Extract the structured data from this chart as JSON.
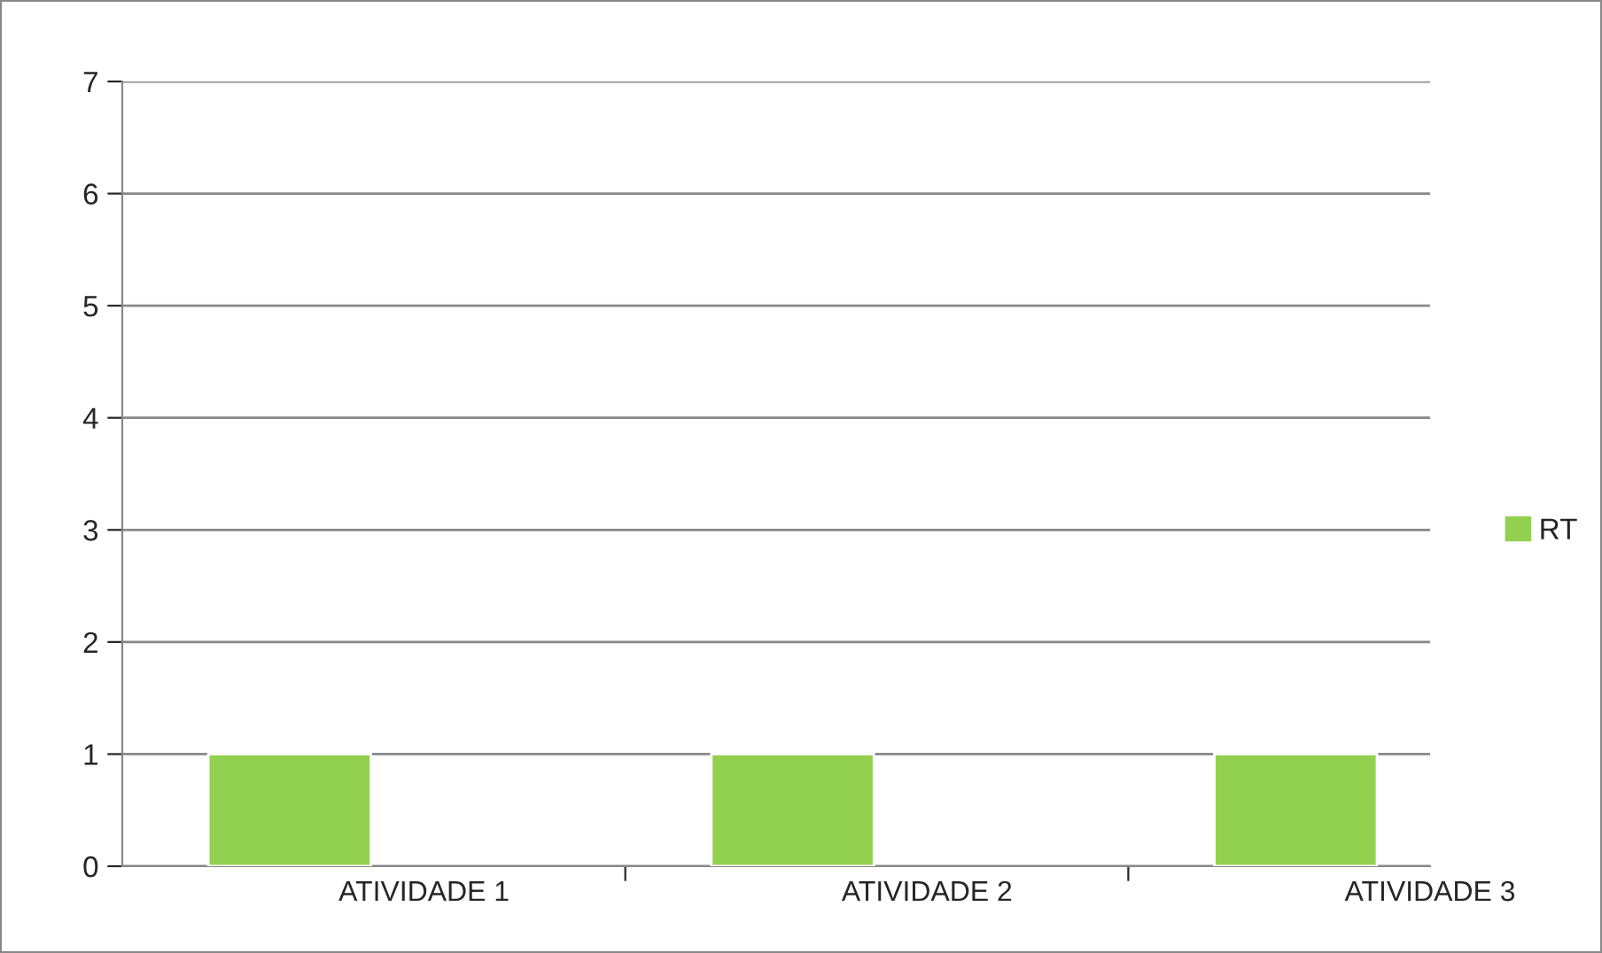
{
  "chart_data": {
    "type": "bar",
    "categories": [
      "ATIVIDADE 1",
      "ATIVIDADE 2",
      "ATIVIDADE 3"
    ],
    "series": [
      {
        "name": "RT",
        "color": "#92d050",
        "values": [
          1,
          1,
          1
        ]
      }
    ],
    "ylim": [
      0,
      7
    ],
    "yticks": [
      0,
      1,
      2,
      3,
      4,
      5,
      6,
      7
    ],
    "grid": "y",
    "legend": "right"
  }
}
